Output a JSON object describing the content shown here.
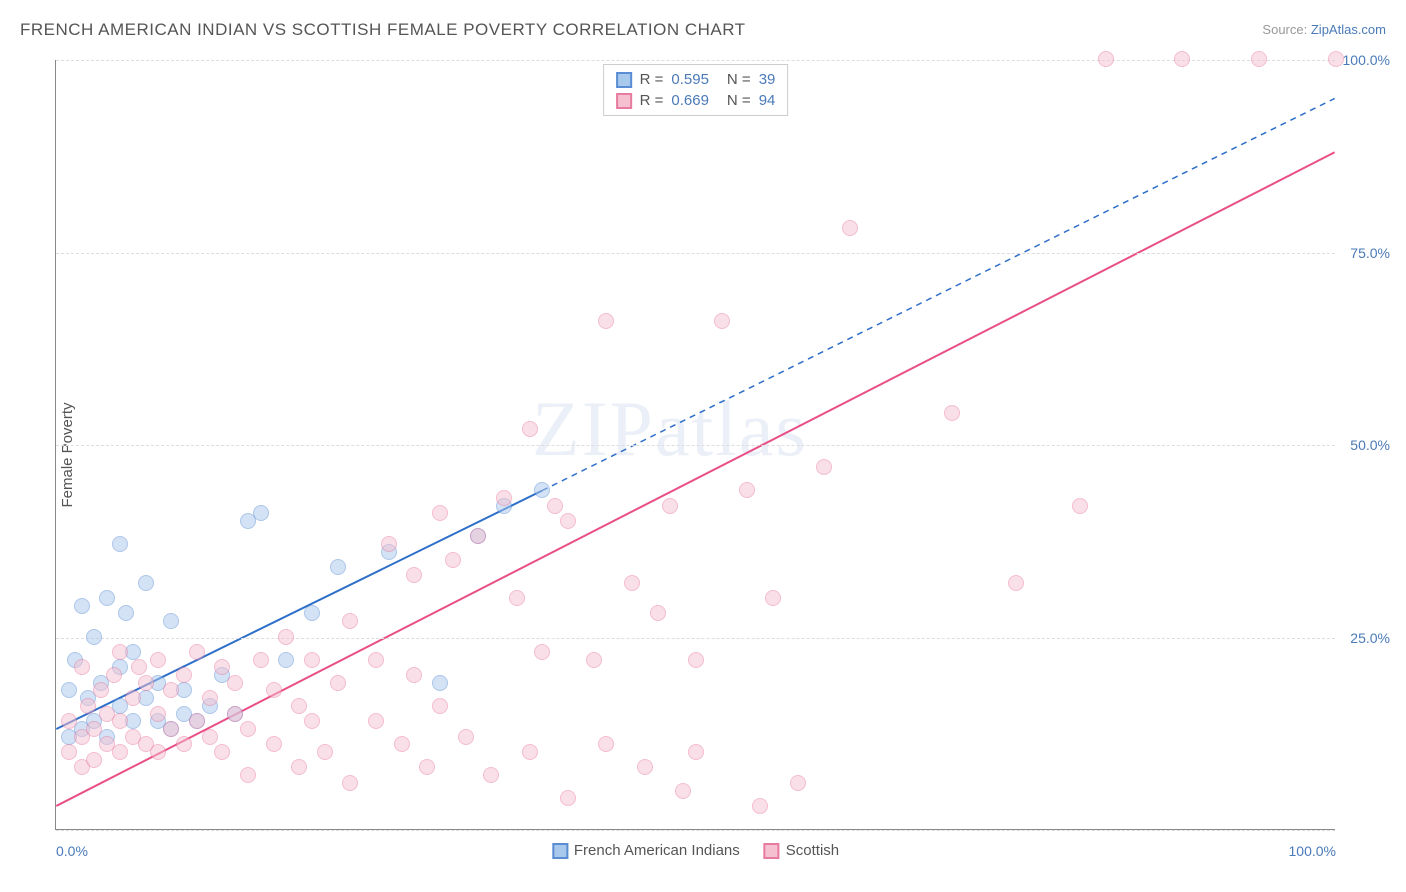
{
  "title": "FRENCH AMERICAN INDIAN VS SCOTTISH FEMALE POVERTY CORRELATION CHART",
  "source_label": "Source:",
  "source_name": "ZipAtlas.com",
  "ylabel": "Female Poverty",
  "watermark": "ZIPatlas",
  "chart": {
    "type": "scatter",
    "xlim": [
      0,
      100
    ],
    "ylim": [
      0,
      100
    ],
    "xtick_labels": {
      "0": "0.0%",
      "100": "100.0%"
    },
    "ytick_labels": {
      "25": "25.0%",
      "50": "50.0%",
      "75": "75.0%",
      "100": "100.0%"
    },
    "gridlines_y": [
      0,
      25,
      50,
      75,
      100
    ],
    "grid_color": "#dddddd",
    "axis_color": "#888888",
    "background_color": "#ffffff",
    "tick_label_color": "#4a7ab8",
    "tick_fontsize": 14,
    "point_radius": 8,
    "point_opacity": 0.5,
    "point_border_width": 1.5,
    "series": [
      {
        "name": "French American Indians",
        "color_fill": "#a8c8ec",
        "color_border": "#5b8dd4",
        "r": 0.595,
        "n": 39,
        "trend": {
          "x1": 0,
          "y1": 13,
          "x2": 38,
          "y2": 44,
          "dash_to_x": 100,
          "dash_to_y": 95,
          "color": "#2e6fc9",
          "width": 2
        },
        "points": [
          [
            1,
            12
          ],
          [
            1,
            18
          ],
          [
            1.5,
            22
          ],
          [
            2,
            13
          ],
          [
            2,
            29
          ],
          [
            2.5,
            17
          ],
          [
            3,
            25
          ],
          [
            3,
            14
          ],
          [
            3.5,
            19
          ],
          [
            4,
            30
          ],
          [
            4,
            12
          ],
          [
            5,
            37
          ],
          [
            5,
            16
          ],
          [
            5,
            21
          ],
          [
            5.5,
            28
          ],
          [
            6,
            14
          ],
          [
            6,
            23
          ],
          [
            7,
            17
          ],
          [
            7,
            32
          ],
          [
            8,
            19
          ],
          [
            8,
            14
          ],
          [
            9,
            13
          ],
          [
            9,
            27
          ],
          [
            10,
            18
          ],
          [
            10,
            15
          ],
          [
            11,
            14
          ],
          [
            12,
            16
          ],
          [
            13,
            20
          ],
          [
            14,
            15
          ],
          [
            15,
            40
          ],
          [
            16,
            41
          ],
          [
            18,
            22
          ],
          [
            20,
            28
          ],
          [
            22,
            34
          ],
          [
            26,
            36
          ],
          [
            30,
            19
          ],
          [
            33,
            38
          ],
          [
            35,
            42
          ],
          [
            38,
            44
          ]
        ]
      },
      {
        "name": "Scottish",
        "color_fill": "#f5c0d0",
        "color_border": "#e87ca0",
        "r": 0.669,
        "n": 94,
        "trend": {
          "x1": 0,
          "y1": 3,
          "x2": 100,
          "y2": 88,
          "color": "#e94f86",
          "width": 2
        },
        "points": [
          [
            1,
            10
          ],
          [
            1,
            14
          ],
          [
            2,
            8
          ],
          [
            2,
            12
          ],
          [
            2,
            21
          ],
          [
            2.5,
            16
          ],
          [
            3,
            9
          ],
          [
            3,
            13
          ],
          [
            3.5,
            18
          ],
          [
            4,
            11
          ],
          [
            4,
            15
          ],
          [
            4.5,
            20
          ],
          [
            5,
            10
          ],
          [
            5,
            14
          ],
          [
            5,
            23
          ],
          [
            6,
            12
          ],
          [
            6,
            17
          ],
          [
            6.5,
            21
          ],
          [
            7,
            11
          ],
          [
            7,
            19
          ],
          [
            8,
            10
          ],
          [
            8,
            15
          ],
          [
            8,
            22
          ],
          [
            9,
            13
          ],
          [
            9,
            18
          ],
          [
            10,
            11
          ],
          [
            10,
            20
          ],
          [
            11,
            14
          ],
          [
            11,
            23
          ],
          [
            12,
            12
          ],
          [
            12,
            17
          ],
          [
            13,
            10
          ],
          [
            13,
            21
          ],
          [
            14,
            15
          ],
          [
            14,
            19
          ],
          [
            15,
            7
          ],
          [
            15,
            13
          ],
          [
            16,
            22
          ],
          [
            17,
            11
          ],
          [
            17,
            18
          ],
          [
            18,
            25
          ],
          [
            19,
            8
          ],
          [
            19,
            16
          ],
          [
            20,
            14
          ],
          [
            20,
            22
          ],
          [
            21,
            10
          ],
          [
            22,
            19
          ],
          [
            23,
            6
          ],
          [
            23,
            27
          ],
          [
            25,
            14
          ],
          [
            25,
            22
          ],
          [
            26,
            37
          ],
          [
            27,
            11
          ],
          [
            28,
            20
          ],
          [
            28,
            33
          ],
          [
            29,
            8
          ],
          [
            30,
            16
          ],
          [
            30,
            41
          ],
          [
            31,
            35
          ],
          [
            32,
            12
          ],
          [
            33,
            38
          ],
          [
            34,
            7
          ],
          [
            35,
            43
          ],
          [
            36,
            30
          ],
          [
            37,
            10
          ],
          [
            37,
            52
          ],
          [
            38,
            23
          ],
          [
            39,
            42
          ],
          [
            40,
            4
          ],
          [
            40,
            40
          ],
          [
            42,
            22
          ],
          [
            43,
            11
          ],
          [
            43,
            66
          ],
          [
            45,
            32
          ],
          [
            46,
            8
          ],
          [
            47,
            28
          ],
          [
            48,
            42
          ],
          [
            49,
            5
          ],
          [
            50,
            10
          ],
          [
            50,
            22
          ],
          [
            52,
            66
          ],
          [
            54,
            44
          ],
          [
            55,
            3
          ],
          [
            56,
            30
          ],
          [
            58,
            6
          ],
          [
            60,
            47
          ],
          [
            62,
            78
          ],
          [
            70,
            54
          ],
          [
            75,
            32
          ],
          [
            80,
            42
          ],
          [
            82,
            100
          ],
          [
            88,
            100
          ],
          [
            94,
            100
          ],
          [
            100,
            100
          ]
        ]
      }
    ]
  },
  "legend_stats": {
    "r_label": "R =",
    "n_label": "N ="
  },
  "bottom_legend_labels": [
    "French American Indians",
    "Scottish"
  ]
}
